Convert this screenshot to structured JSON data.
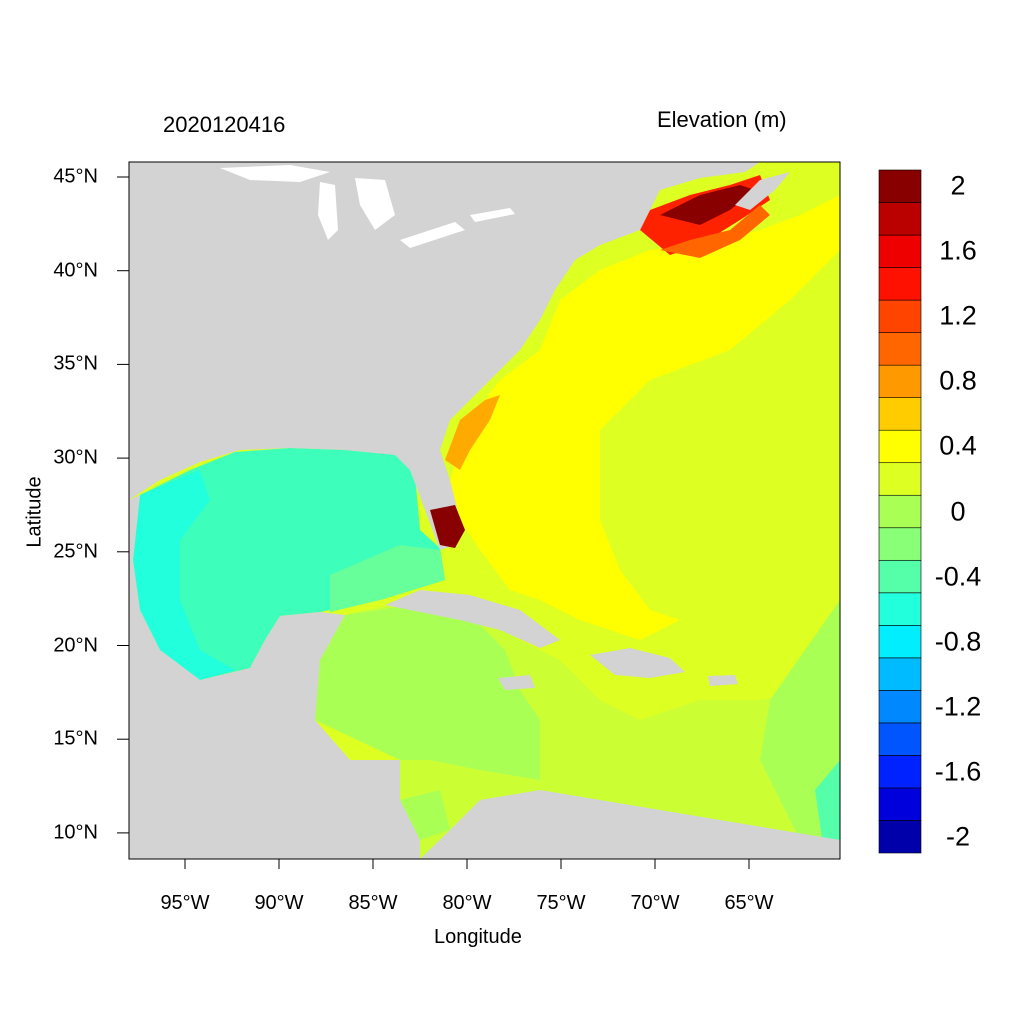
{
  "map": {
    "date_label": "2020120416",
    "variable_label": "Elevation (m)",
    "x_title": "Longitude",
    "y_title": "Latitude",
    "lon_ticks": [
      {
        "lon": -95,
        "label": "95°W"
      },
      {
        "lon": -90,
        "label": "90°W"
      },
      {
        "lon": -85,
        "label": "85°W"
      },
      {
        "lon": -80,
        "label": "80°W"
      },
      {
        "lon": -75,
        "label": "75°W"
      },
      {
        "lon": -70,
        "label": "70°W"
      },
      {
        "lon": -65,
        "label": "65°W"
      }
    ],
    "lat_ticks": [
      {
        "lat": 45,
        "label": "45°N"
      },
      {
        "lat": 40,
        "label": "40°N"
      },
      {
        "lat": 35,
        "label": "35°N"
      },
      {
        "lat": 30,
        "label": "30°N"
      },
      {
        "lat": 25,
        "label": "25°N"
      },
      {
        "lat": 20,
        "label": "20°N"
      },
      {
        "lat": 15,
        "label": "15°N"
      },
      {
        "lat": 10,
        "label": "10°N"
      }
    ],
    "colors": {
      "land": "#d3d3d3",
      "lakes": "#ffffff"
    }
  },
  "colorbar": {
    "colors": [
      "#0000aa",
      "#0000dd",
      "#0022ff",
      "#0055ff",
      "#0088ff",
      "#00bbff",
      "#00eeff",
      "#22ffdd",
      "#55ffaa",
      "#88ff77",
      "#aaff55",
      "#ddff22",
      "#ffff00",
      "#ffcc00",
      "#ff9900",
      "#ff6600",
      "#ff4400",
      "#ff1100",
      "#ee0000",
      "#bb0000",
      "#880000"
    ],
    "labels": [
      {
        "value": 2,
        "text": "2"
      },
      {
        "value": 1.6,
        "text": "1.6"
      },
      {
        "value": 1.2,
        "text": "1.2"
      },
      {
        "value": 0.8,
        "text": "0.8"
      },
      {
        "value": 0.4,
        "text": "0.4"
      },
      {
        "value": 0,
        "text": "0"
      },
      {
        "value": -0.4,
        "text": "-0.4"
      },
      {
        "value": -0.8,
        "text": "-0.8"
      },
      {
        "value": -1.2,
        "text": "-1.2"
      },
      {
        "value": -1.6,
        "text": "-1.6"
      },
      {
        "value": -2,
        "text": "-2"
      }
    ]
  }
}
